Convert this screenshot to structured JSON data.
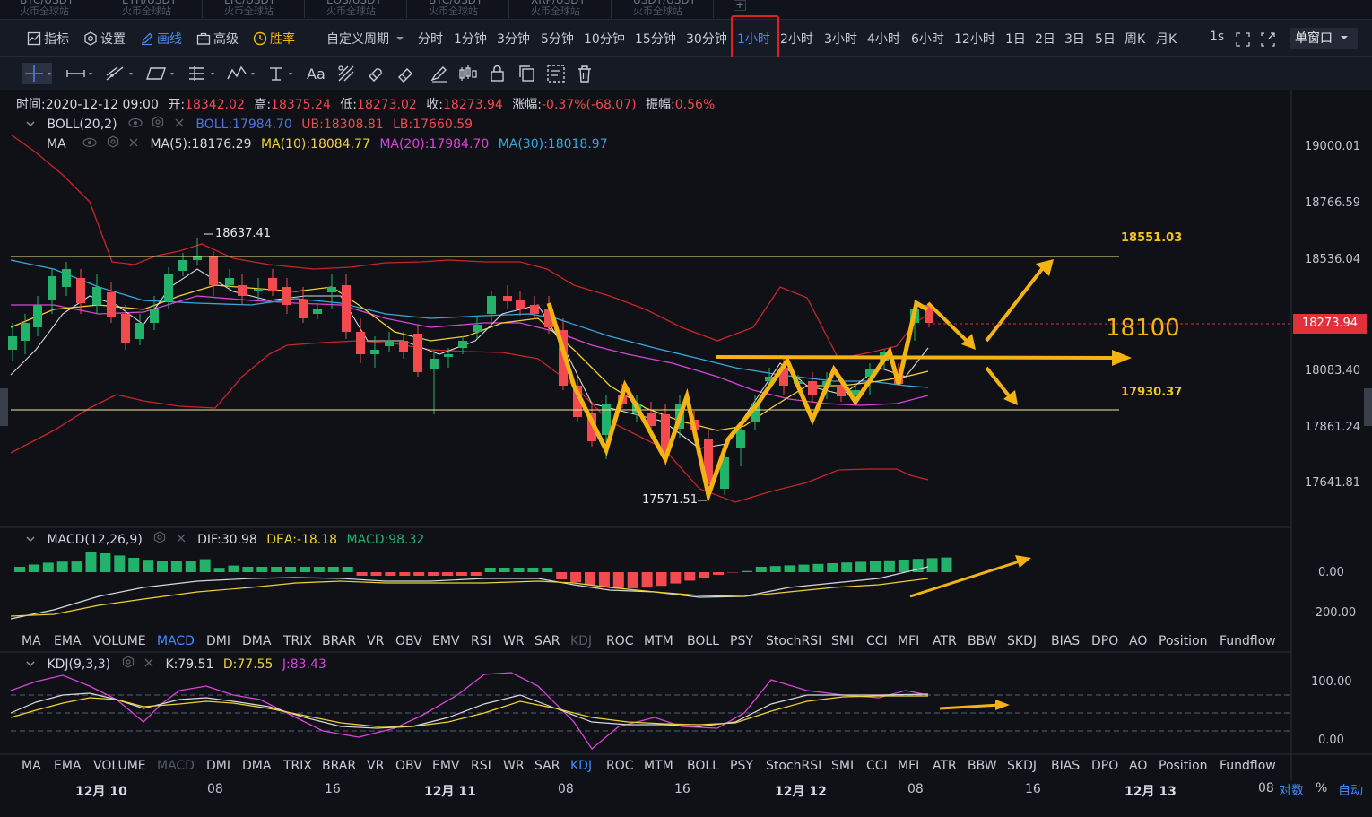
{
  "market_tabs": [
    {
      "symbol": "BTC/USDT",
      "exchange": "火币全球站"
    },
    {
      "symbol": "ETH/USDT",
      "exchange": "火币全球站"
    },
    {
      "symbol": "LTC/USDT",
      "exchange": "火币全球站"
    },
    {
      "symbol": "EOS/USDT",
      "exchange": "火币全球站"
    },
    {
      "symbol": "BTC/USDT",
      "exchange": "火币全球站"
    },
    {
      "symbol": "XRP/USDT",
      "exchange": "火币全球站"
    },
    {
      "symbol": "USDT/USDT",
      "exchange": "火币全球站"
    }
  ],
  "tab_add": "+",
  "toolbar": {
    "indicators": "指标",
    "settings": "设置",
    "draw": "画线",
    "advanced": "高级",
    "win_rate": "胜率",
    "custom_period": "自定义周期",
    "periods": [
      "分时",
      "1分钟",
      "3分钟",
      "5分钟",
      "10分钟",
      "15分钟",
      "30分钟",
      "1小时",
      "2小时",
      "3小时",
      "4小时",
      "6小时",
      "12小时",
      "1日",
      "2日",
      "3日",
      "5日",
      "周K",
      "月K"
    ],
    "active_period": "1小时",
    "refresh": "1s",
    "window_mode": "单窗口"
  },
  "ohlc_info": {
    "time_label": "时间:",
    "time": "2020-12-12 09:00",
    "open_label": "开:",
    "open": "18342.02",
    "high_label": "高:",
    "high": "18375.24",
    "low_label": "低:",
    "low": "18273.02",
    "close_label": "收:",
    "close": "18273.94",
    "change_label": "涨幅:",
    "change": "-0.37%(-68.07)",
    "amplitude_label": "振幅:",
    "amplitude": "0.56%"
  },
  "boll": {
    "name": "BOLL(20,2)",
    "mid": "BOLL:17984.70",
    "ub": "UB:18308.81",
    "lb": "LB:17660.59"
  },
  "ma": {
    "name": "MA",
    "ma5": "MA(5):18176.29",
    "ma10": "MA(10):18084.77",
    "ma20": "MA(20):17984.70",
    "ma30": "MA(30):18018.97"
  },
  "macd": {
    "name": "MACD(12,26,9)",
    "dif": "DIF:30.98",
    "dea": "DEA:-18.18",
    "macd": "MACD:98.32"
  },
  "kdj": {
    "name": "KDJ(9,3,3)",
    "k": "K:79.51",
    "d": "D:77.55",
    "j": "J:83.43"
  },
  "price_axis": [
    "19000.01",
    "18766.59",
    "18536.04",
    "18083.40",
    "17861.24",
    "17641.81"
  ],
  "current_price_tag": "18273.94",
  "annotations": {
    "high_marker": "18637.41",
    "low_marker": "17571.51",
    "resistance": "18551.03",
    "support": "17930.37",
    "pivot": "18100"
  },
  "macd_axis": [
    "0.00",
    "-200.00"
  ],
  "kdj_axis": [
    "100.00",
    "0.00"
  ],
  "indicator_tabs": [
    "MA",
    "EMA",
    "VOLUME",
    "MACD",
    "DMI",
    "DMA",
    "TRIX",
    "BRAR",
    "VR",
    "OBV",
    "EMV",
    "RSI",
    "WR",
    "SAR",
    "KDJ",
    "ROC",
    "MTM",
    "BOLL",
    "PSY",
    "StochRSI",
    "SMI",
    "CCI",
    "MFI",
    "ATR",
    "BBW",
    "SKDJ",
    "BIAS",
    "DPO",
    "AO",
    "Position",
    "Fundflow"
  ],
  "time_axis": [
    {
      "label": "12月 10",
      "bold": true
    },
    {
      "label": "08",
      "bold": false
    },
    {
      "label": "16",
      "bold": false
    },
    {
      "label": "12月 11",
      "bold": true
    },
    {
      "label": "08",
      "bold": false
    },
    {
      "label": "16",
      "bold": false
    },
    {
      "label": "12月 12",
      "bold": true
    },
    {
      "label": "08",
      "bold": false
    },
    {
      "label": "16",
      "bold": false
    },
    {
      "label": "12月 13",
      "bold": true
    },
    {
      "label": "08",
      "bold": false
    }
  ],
  "axis_options": {
    "log": "对数",
    "percent": "%",
    "auto": "自动"
  },
  "colors": {
    "up": "#22b26a",
    "down": "#f24a4f",
    "annotation": "#f5b313",
    "accent": "#3f8cff",
    "boll_band": "#d8282c"
  }
}
